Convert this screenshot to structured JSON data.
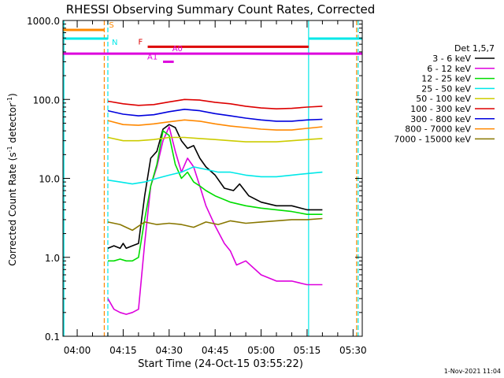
{
  "chart_data": {
    "type": "line",
    "title": "RHESSI Observing Summary Count Rates, Corrected",
    "xlabel": "Start Time (24-Oct-15 03:55:22)",
    "ylabel": "Corrected Count Rate (s⁻¹ detector⁻¹)",
    "footer": "1-Nov-2021 11:04",
    "yscale": "log",
    "ylim": [
      0.1,
      1000
    ],
    "xlim": [
      "03:55:22",
      "05:33:00"
    ],
    "ytick_labels": [
      "0.1",
      "1.0",
      "10.0",
      "100.0",
      "1000.0"
    ],
    "ytick_values": [
      0.1,
      1,
      10,
      100,
      1000
    ],
    "xtick_labels": [
      "04:00",
      "04:15",
      "04:30",
      "04:45",
      "05:00",
      "05:15",
      "05:30"
    ],
    "xtick_values": [
      "04:00",
      "04:15",
      "04:30",
      "04:45",
      "05:00",
      "05:15",
      "05:30"
    ],
    "legend": {
      "title": "Det 1,5,7",
      "position": "right",
      "entries": [
        {
          "label": "3 - 6 keV",
          "color": "#000000"
        },
        {
          "label": "6 - 12 keV",
          "color": "#dd00dd"
        },
        {
          "label": "12 - 25 keV",
          "color": "#00dd00"
        },
        {
          "label": "25 - 50 keV",
          "color": "#00e8e8"
        },
        {
          "label": "50 - 100 keV",
          "color": "#cccc00"
        },
        {
          "label": "100 - 300 keV",
          "color": "#dd0000"
        },
        {
          "label": "300 - 800 keV",
          "color": "#0000dd"
        },
        {
          "label": "800 - 7000 keV",
          "color": "#ff8800"
        },
        {
          "label": "7000 - 15000 keV",
          "color": "#887700"
        }
      ]
    },
    "flag_bars": [
      {
        "label": "S",
        "color": "#ff8800",
        "segments": [
          [
            "03:55:22",
            "04:08:50"
          ]
        ],
        "level": 760
      },
      {
        "label": "N",
        "color": "#00e8e8",
        "segments": [
          [
            "03:55:22",
            "04:10:00"
          ],
          [
            "05:15:30",
            "05:33:00"
          ]
        ],
        "level": 590
      },
      {
        "label": "F",
        "color": "#dd0000",
        "segments": [
          [
            "04:23:00",
            "05:15:30"
          ]
        ],
        "level": 465
      },
      {
        "label": "A0",
        "color": "#dd00dd",
        "segments": [
          [
            "03:55:22",
            "05:33:00"
          ]
        ],
        "level": 380
      },
      {
        "label": "A1",
        "color": "#dd00dd",
        "segments": [
          [
            "04:28:00",
            "04:31:30"
          ]
        ],
        "level": 300
      }
    ],
    "vertical_markers": [
      {
        "time": "03:55:40",
        "color": "#00e8e8",
        "style": "solid"
      },
      {
        "time": "04:08:50",
        "color": "#ff8800",
        "style": "dashed"
      },
      {
        "time": "04:10:00",
        "color": "#00e8e8",
        "style": "dashed"
      },
      {
        "time": "05:15:30",
        "color": "#00e8e8",
        "style": "solid"
      },
      {
        "time": "05:31:10",
        "color": "#ff8800",
        "style": "dashed"
      },
      {
        "time": "05:31:40",
        "color": "#00e8e8",
        "style": "dashed"
      }
    ],
    "series": [
      {
        "name": "3 - 6 keV",
        "color": "#000000",
        "x": [
          "04:10:00",
          "04:12:00",
          "04:14:00",
          "04:15:00",
          "04:16:00",
          "04:18:00",
          "04:20:00",
          "04:22:00",
          "04:24:00",
          "04:26:00",
          "04:28:00",
          "04:30:00",
          "04:32:00",
          "04:34:00",
          "04:36:00",
          "04:38:00",
          "04:40:00",
          "04:42:00",
          "04:45:00",
          "04:48:00",
          "04:51:00",
          "04:53:00",
          "04:56:00",
          "05:00:00",
          "05:05:00",
          "05:10:00",
          "05:15:00",
          "05:20:00"
        ],
        "y": [
          1.3,
          1.4,
          1.3,
          1.5,
          1.3,
          1.4,
          1.5,
          6.0,
          18,
          22,
          42,
          48,
          44,
          30,
          24,
          26,
          18,
          14,
          11,
          7.5,
          7.0,
          8.5,
          6.0,
          5.0,
          4.5,
          4.5,
          4.0,
          4.0
        ]
      },
      {
        "name": "6 - 12 keV",
        "color": "#dd00dd",
        "x": [
          "04:10:00",
          "04:12:00",
          "04:14:00",
          "04:16:00",
          "04:18:00",
          "04:20:00",
          "04:22:00",
          "04:24:00",
          "04:26:00",
          "04:28:00",
          "04:30:00",
          "04:32:00",
          "04:34:00",
          "04:36:00",
          "04:38:00",
          "04:40:00",
          "04:42:00",
          "04:45:00",
          "04:48:00",
          "04:50:00",
          "04:52:00",
          "04:55:00",
          "05:00:00",
          "05:05:00",
          "05:10:00",
          "05:15:00",
          "05:20:00"
        ],
        "y": [
          0.3,
          0.22,
          0.2,
          0.19,
          0.2,
          0.22,
          1.5,
          8,
          14,
          30,
          45,
          22,
          12,
          18,
          14,
          8,
          4.5,
          2.5,
          1.5,
          1.2,
          0.8,
          0.9,
          0.6,
          0.5,
          0.5,
          0.45,
          0.45
        ]
      },
      {
        "name": "12 - 25 keV",
        "color": "#00dd00",
        "x": [
          "04:10:00",
          "04:12:00",
          "04:14:00",
          "04:16:00",
          "04:18:00",
          "04:20:00",
          "04:22:00",
          "04:24:00",
          "04:26:00",
          "04:28:00",
          "04:30:00",
          "04:32:00",
          "04:34:00",
          "04:36:00",
          "04:38:00",
          "04:40:00",
          "04:42:00",
          "04:45:00",
          "04:50:00",
          "04:55:00",
          "05:00:00",
          "05:05:00",
          "05:10:00",
          "05:15:00",
          "05:20:00"
        ],
        "y": [
          0.9,
          0.9,
          0.95,
          0.9,
          0.9,
          1.0,
          3,
          8,
          15,
          40,
          35,
          15,
          10,
          12,
          9,
          8,
          7,
          6,
          5,
          4.5,
          4.2,
          4.0,
          3.8,
          3.5,
          3.5
        ]
      },
      {
        "name": "25 - 50 keV",
        "color": "#00e8e8",
        "x": [
          "04:10:00",
          "04:14:00",
          "04:18:00",
          "04:22:00",
          "04:26:00",
          "04:30:00",
          "04:34:00",
          "04:38:00",
          "04:42:00",
          "04:46:00",
          "04:50:00",
          "04:55:00",
          "05:00:00",
          "05:05:00",
          "05:10:00",
          "05:15:00",
          "05:20:00"
        ],
        "y": [
          9.5,
          9.0,
          8.5,
          9.0,
          10,
          11,
          12,
          14,
          13,
          12,
          12,
          11,
          10.5,
          10.5,
          11,
          11.5,
          12
        ]
      },
      {
        "name": "50 - 100 keV",
        "color": "#cccc00",
        "x": [
          "04:10:00",
          "04:15:00",
          "04:20:00",
          "04:25:00",
          "04:30:00",
          "04:35:00",
          "04:40:00",
          "04:45:00",
          "04:50:00",
          "04:55:00",
          "05:00:00",
          "05:05:00",
          "05:10:00",
          "05:15:00",
          "05:20:00"
        ],
        "y": [
          33,
          30,
          30,
          31,
          33,
          33,
          32,
          31,
          30,
          29,
          29,
          29,
          30,
          31,
          32
        ]
      },
      {
        "name": "100 - 300 keV",
        "color": "#dd0000",
        "x": [
          "04:10:00",
          "04:15:00",
          "04:20:00",
          "04:25:00",
          "04:30:00",
          "04:35:00",
          "04:40:00",
          "04:45:00",
          "04:50:00",
          "04:55:00",
          "05:00:00",
          "05:05:00",
          "05:10:00",
          "05:15:00",
          "05:20:00"
        ],
        "y": [
          95,
          88,
          84,
          86,
          93,
          100,
          98,
          92,
          88,
          82,
          78,
          76,
          77,
          80,
          82
        ]
      },
      {
        "name": "300 - 800 keV",
        "color": "#0000dd",
        "x": [
          "04:10:00",
          "04:15:00",
          "04:20:00",
          "04:25:00",
          "04:30:00",
          "04:35:00",
          "04:40:00",
          "04:45:00",
          "04:50:00",
          "04:55:00",
          "05:00:00",
          "05:05:00",
          "05:10:00",
          "05:15:00",
          "05:20:00"
        ],
        "y": [
          72,
          65,
          62,
          64,
          70,
          75,
          72,
          66,
          62,
          58,
          55,
          53,
          53,
          55,
          56
        ]
      },
      {
        "name": "800 - 7000 keV",
        "color": "#ff8800",
        "x": [
          "04:10:00",
          "04:15:00",
          "04:20:00",
          "04:25:00",
          "04:30:00",
          "04:35:00",
          "04:40:00",
          "04:45:00",
          "04:50:00",
          "04:55:00",
          "05:00:00",
          "05:05:00",
          "05:10:00",
          "05:15:00",
          "05:20:00"
        ],
        "y": [
          54,
          48,
          47,
          49,
          52,
          55,
          53,
          49,
          46,
          44,
          42,
          41,
          41,
          43,
          45
        ]
      },
      {
        "name": "7000 - 15000 keV",
        "color": "#887700",
        "x": [
          "04:10:00",
          "04:14:00",
          "04:18:00",
          "04:22:00",
          "04:26:00",
          "04:30:00",
          "04:34:00",
          "04:38:00",
          "04:42:00",
          "04:46:00",
          "04:50:00",
          "04:55:00",
          "05:00:00",
          "05:05:00",
          "05:10:00",
          "05:15:00",
          "05:20:00"
        ],
        "y": [
          2.8,
          2.6,
          2.2,
          2.8,
          2.6,
          2.7,
          2.6,
          2.4,
          2.8,
          2.6,
          2.9,
          2.7,
          2.8,
          2.9,
          3.0,
          3.0,
          3.1
        ]
      }
    ]
  }
}
